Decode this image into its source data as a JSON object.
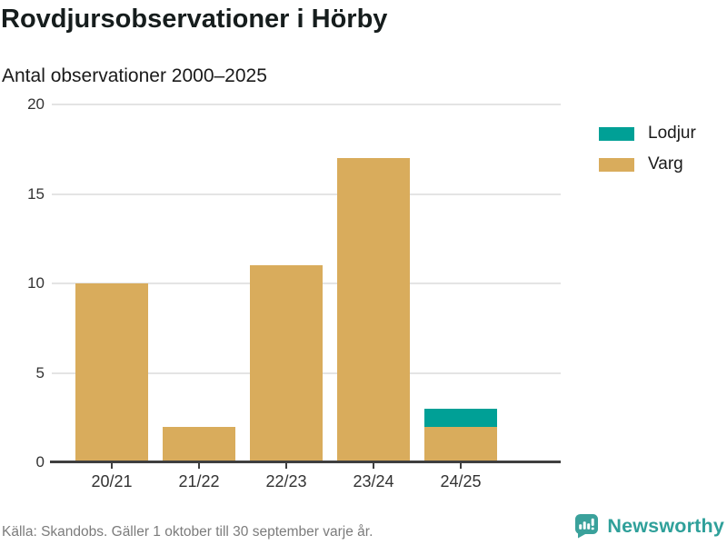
{
  "header": {
    "title": "Rovdjursobservationer i Hörby",
    "subtitle": "Antal observationer 2000–2025"
  },
  "chart_data": {
    "type": "bar",
    "stacked": true,
    "title": "Rovdjursobservationer i Hörby",
    "subtitle": "Antal observationer 2000–2025",
    "categories": [
      "20/21",
      "21/22",
      "22/23",
      "23/24",
      "24/25"
    ],
    "series": [
      {
        "name": "Lodjur",
        "color": "#00a096",
        "values": [
          0,
          0,
          0,
          0,
          1
        ]
      },
      {
        "name": "Varg",
        "color": "#d9ac5c",
        "values": [
          10,
          2,
          11,
          17,
          2
        ]
      }
    ],
    "xlabel": "",
    "ylabel": "",
    "ylim": [
      0,
      20
    ],
    "yticks": [
      0,
      5,
      10,
      15,
      20
    ],
    "grid": true,
    "legend_position": "right"
  },
  "footer": {
    "source": "Källa: Skandobs. Gäller 1 oktober till 30 september varje år.",
    "brand": "Newsworthy"
  },
  "colors": {
    "lodjur": "#00a096",
    "varg": "#d9ac5c",
    "logo_teal": "#3aa19b",
    "grid": "#e4e4e4",
    "axis": "#3f3f3f",
    "text": "#1a1a1a",
    "muted": "#7c7c7c"
  },
  "icons": {
    "brand_logo": "newsworthy-speech-bubble-bar-chart-icon"
  }
}
